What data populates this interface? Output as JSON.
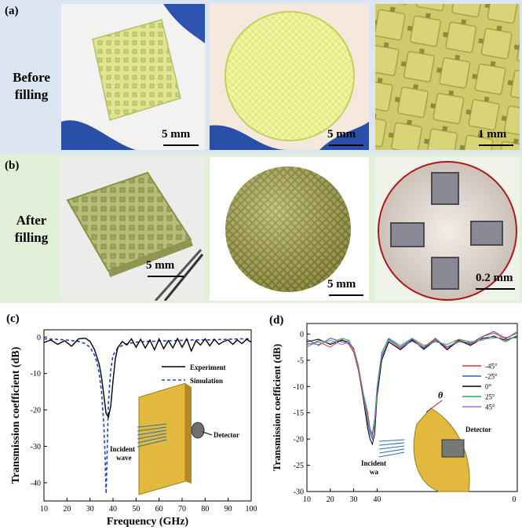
{
  "panel_a": {
    "label": "(a)",
    "row_label_line1": "Before",
    "row_label_line2": "filling",
    "scales": [
      "5 mm",
      "5 mm",
      "1 mm"
    ]
  },
  "panel_b": {
    "label": "(b)",
    "row_label_line1": "After",
    "row_label_line2": "filling",
    "scales": [
      "5 mm",
      "5 mm",
      "0.2 mm"
    ]
  },
  "colors": {
    "panel_a_bg": "#dce6f2",
    "panel_b_bg": "#e2efd9",
    "experiment": "#000000",
    "simulation": "#1f3fd6",
    "neg45": "#e8302f",
    "neg25": "#2f5fc8",
    "zero": "#000000",
    "pos25": "#2ba84a",
    "pos45": "#a070c8"
  },
  "chart_data": [
    {
      "type": "line",
      "panel_label": "(c)",
      "xlabel": "Frequency (GHz)",
      "ylabel": "Transmission  coefficient (dB)",
      "xlim": [
        10,
        100
      ],
      "ylim": [
        -45,
        2
      ],
      "xticks": [
        10,
        20,
        30,
        40,
        50,
        60,
        70,
        80,
        90,
        100
      ],
      "yticks": [
        0,
        -10,
        -20,
        -30,
        -40
      ],
      "xtick_labels": [
        "10",
        "20",
        "30",
        "40",
        "50",
        "60",
        "70",
        "80",
        "90",
        "100"
      ],
      "ytick_labels": [
        "0",
        "-10",
        "-20",
        "-30",
        "-40"
      ],
      "legend": [
        "Experiment",
        "Simulation"
      ],
      "annotations": [
        "Incident",
        "wave",
        "Detector"
      ],
      "series": [
        {
          "name": "Experiment",
          "style": "solid",
          "x": [
            10,
            13,
            16,
            19,
            22,
            25,
            28,
            30,
            32,
            34,
            35,
            36,
            37,
            38,
            39,
            40,
            41,
            42,
            44,
            46,
            48,
            50,
            52,
            54,
            56,
            58,
            60,
            62,
            64,
            66,
            68,
            70,
            72,
            74,
            76,
            78,
            80,
            82,
            84,
            86,
            88,
            90,
            92,
            94,
            96,
            98,
            100
          ],
          "y": [
            -1.5,
            -0.8,
            -2.0,
            -1.0,
            -2.5,
            -0.5,
            -0.3,
            -1.2,
            -3.5,
            -7.5,
            -11,
            -16,
            -21,
            -22,
            -19,
            -12,
            -6,
            -3,
            -1.2,
            -2.2,
            -0.5,
            -2.8,
            -0.6,
            -3.0,
            -0.8,
            -3.5,
            -0.5,
            -3.2,
            -1.0,
            -3.0,
            -0.4,
            -2.8,
            -0.5,
            -3.8,
            -1.0,
            -2.2,
            -0.5,
            -2.4,
            -0.6,
            -2.0,
            -1.2,
            -0.8,
            -2.0,
            -0.8,
            -1.8,
            -0.6,
            -1.4
          ]
        },
        {
          "name": "Simulation",
          "style": "dashed",
          "x": [
            10,
            15,
            20,
            25,
            28,
            30,
            32,
            33,
            34,
            35,
            36,
            36.5,
            37,
            37.5,
            38,
            39,
            40,
            42,
            45,
            50,
            55,
            60,
            65,
            70,
            75,
            80,
            85,
            90,
            95,
            100
          ],
          "y": [
            -0.5,
            -0.6,
            -0.8,
            -1.2,
            -1.8,
            -2.8,
            -5,
            -7,
            -10,
            -15,
            -24,
            -32,
            -43,
            -30,
            -18,
            -9,
            -5,
            -3,
            -2,
            -1.4,
            -1.2,
            -1.1,
            -1.0,
            -0.9,
            -0.8,
            -0.8,
            -0.7,
            -0.6,
            -0.5,
            -0.5
          ]
        }
      ]
    },
    {
      "type": "line",
      "panel_label": "(d)",
      "xlabel": "",
      "ylabel": "Transmission coefficient (dB)",
      "xlim": [
        10,
        100
      ],
      "ylim": [
        -30,
        2
      ],
      "xticks": [
        10,
        20,
        30,
        40
      ],
      "yticks": [
        0,
        -5,
        -10,
        -15,
        -20,
        -25,
        -30
      ],
      "xtick_labels": [
        "10",
        "20",
        "30",
        "40"
      ],
      "ytick_labels": [
        "0",
        "-5",
        "-10",
        "-15",
        "-20",
        "-25",
        "-30"
      ],
      "right_edge_label": "0",
      "legend": [
        "-45°",
        "-25°",
        "0°",
        "25°",
        "45°"
      ],
      "annotations": [
        "θ",
        "Detector",
        "Incident",
        "wa"
      ],
      "series": [
        {
          "name": "-45°",
          "x": [
            10,
            15,
            20,
            25,
            28,
            30,
            32,
            34,
            35,
            36,
            37,
            38,
            39,
            40,
            42,
            45,
            50,
            55,
            60,
            65,
            70,
            75,
            80,
            85,
            90,
            95,
            100
          ],
          "y": [
            -2,
            -1.5,
            -2.5,
            -1.0,
            -2.0,
            -3.5,
            -7,
            -12,
            -13,
            -15,
            -18,
            -19.5,
            -17,
            -11,
            -4,
            -1.5,
            -2.8,
            -1.0,
            -2.5,
            -0.8,
            -2.8,
            -1.0,
            -2.0,
            -0.5,
            0.2,
            -1.0,
            0.5
          ]
        },
        {
          "name": "-25°",
          "x": [
            10,
            15,
            20,
            25,
            28,
            30,
            32,
            34,
            35,
            36,
            37,
            38,
            39,
            40,
            42,
            45,
            50,
            55,
            60,
            65,
            70,
            75,
            80,
            85,
            90,
            95,
            100
          ],
          "y": [
            -1.0,
            -2.2,
            -0.8,
            -1.5,
            -1.8,
            -3.0,
            -6,
            -11,
            -14,
            -17,
            -19,
            -20,
            -17,
            -11,
            -4.5,
            -1.0,
            -2.5,
            -1.0,
            -3.0,
            -1.2,
            -2.5,
            -1.5,
            -1.8,
            -0.5,
            0.5,
            -0.8,
            0.2
          ]
        },
        {
          "name": "0°",
          "x": [
            10,
            15,
            20,
            25,
            28,
            30,
            32,
            34,
            35,
            36,
            37,
            38,
            39,
            40,
            42,
            45,
            50,
            55,
            60,
            65,
            70,
            75,
            80,
            85,
            90,
            95,
            100
          ],
          "y": [
            -1.5,
            -1.0,
            -2.0,
            -1.2,
            -1.5,
            -2.8,
            -6,
            -12,
            -15,
            -18,
            -20,
            -21,
            -19,
            -12,
            -5,
            -1.5,
            -3.0,
            -1.2,
            -2.8,
            -1.0,
            -3.0,
            -1.2,
            -2.2,
            -0.8,
            -0.5,
            -1.2,
            -0.5
          ]
        },
        {
          "name": "25°",
          "x": [
            10,
            15,
            20,
            25,
            28,
            30,
            32,
            34,
            35,
            36,
            37,
            38,
            39,
            40,
            42,
            45,
            50,
            55,
            60,
            65,
            70,
            75,
            80,
            85,
            90,
            95,
            100
          ],
          "y": [
            -2.5,
            -1.2,
            -1.8,
            -0.8,
            -1.2,
            -3.2,
            -6.5,
            -11,
            -13,
            -16,
            -18,
            -19,
            -16,
            -10,
            -3.5,
            -0.8,
            -2.2,
            -0.8,
            -2.2,
            -1.5,
            -2.0,
            -1.0,
            -1.5,
            -1.2,
            -0.3,
            -1.5,
            -0.2
          ]
        },
        {
          "name": "45°",
          "x": [
            10,
            15,
            20,
            25,
            28,
            30,
            32,
            34,
            35,
            36,
            37,
            38,
            39,
            40,
            42,
            45,
            50,
            55,
            60,
            65,
            70,
            75,
            80,
            85,
            90,
            95,
            100
          ],
          "y": [
            -1.8,
            -2.0,
            -1.2,
            -2.0,
            -1.5,
            -3.0,
            -6,
            -11.5,
            -14,
            -16.5,
            -18.5,
            -19.5,
            -17.5,
            -11,
            -4,
            -1.2,
            -2.6,
            -1.4,
            -2.6,
            -1.0,
            -2.4,
            -1.4,
            -1.6,
            -1.0,
            -0.8,
            -0.6,
            -0.8
          ]
        }
      ]
    }
  ]
}
